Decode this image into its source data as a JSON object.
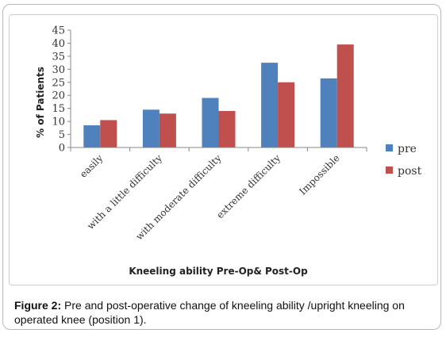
{
  "chart_data": {
    "type": "bar",
    "categories": [
      "easily",
      "with a little difficulty",
      "with moderate difficulty",
      "extreme difficulty",
      "Impossible"
    ],
    "series": [
      {
        "name": "pre",
        "values": [
          8.5,
          14.5,
          19,
          32.5,
          26.5
        ],
        "color": "#4f81bd"
      },
      {
        "name": "post",
        "values": [
          10.5,
          13,
          14,
          25,
          39.5
        ],
        "color": "#c0504d"
      }
    ],
    "xlabel": "Kneeling ability Pre-Op& Post-Op",
    "ylabel": "% of Patients",
    "ylim": [
      0,
      45
    ],
    "yticks": [
      "0",
      "5",
      "10",
      "15",
      "20",
      "25",
      "30",
      "35",
      "40",
      "45"
    ],
    "grid": false,
    "legend_position": "right"
  },
  "caption": {
    "label": "Figure 2:",
    "text": " Pre and post-operative change of kneeling ability /upright kneeling on operated knee (position 1)."
  }
}
